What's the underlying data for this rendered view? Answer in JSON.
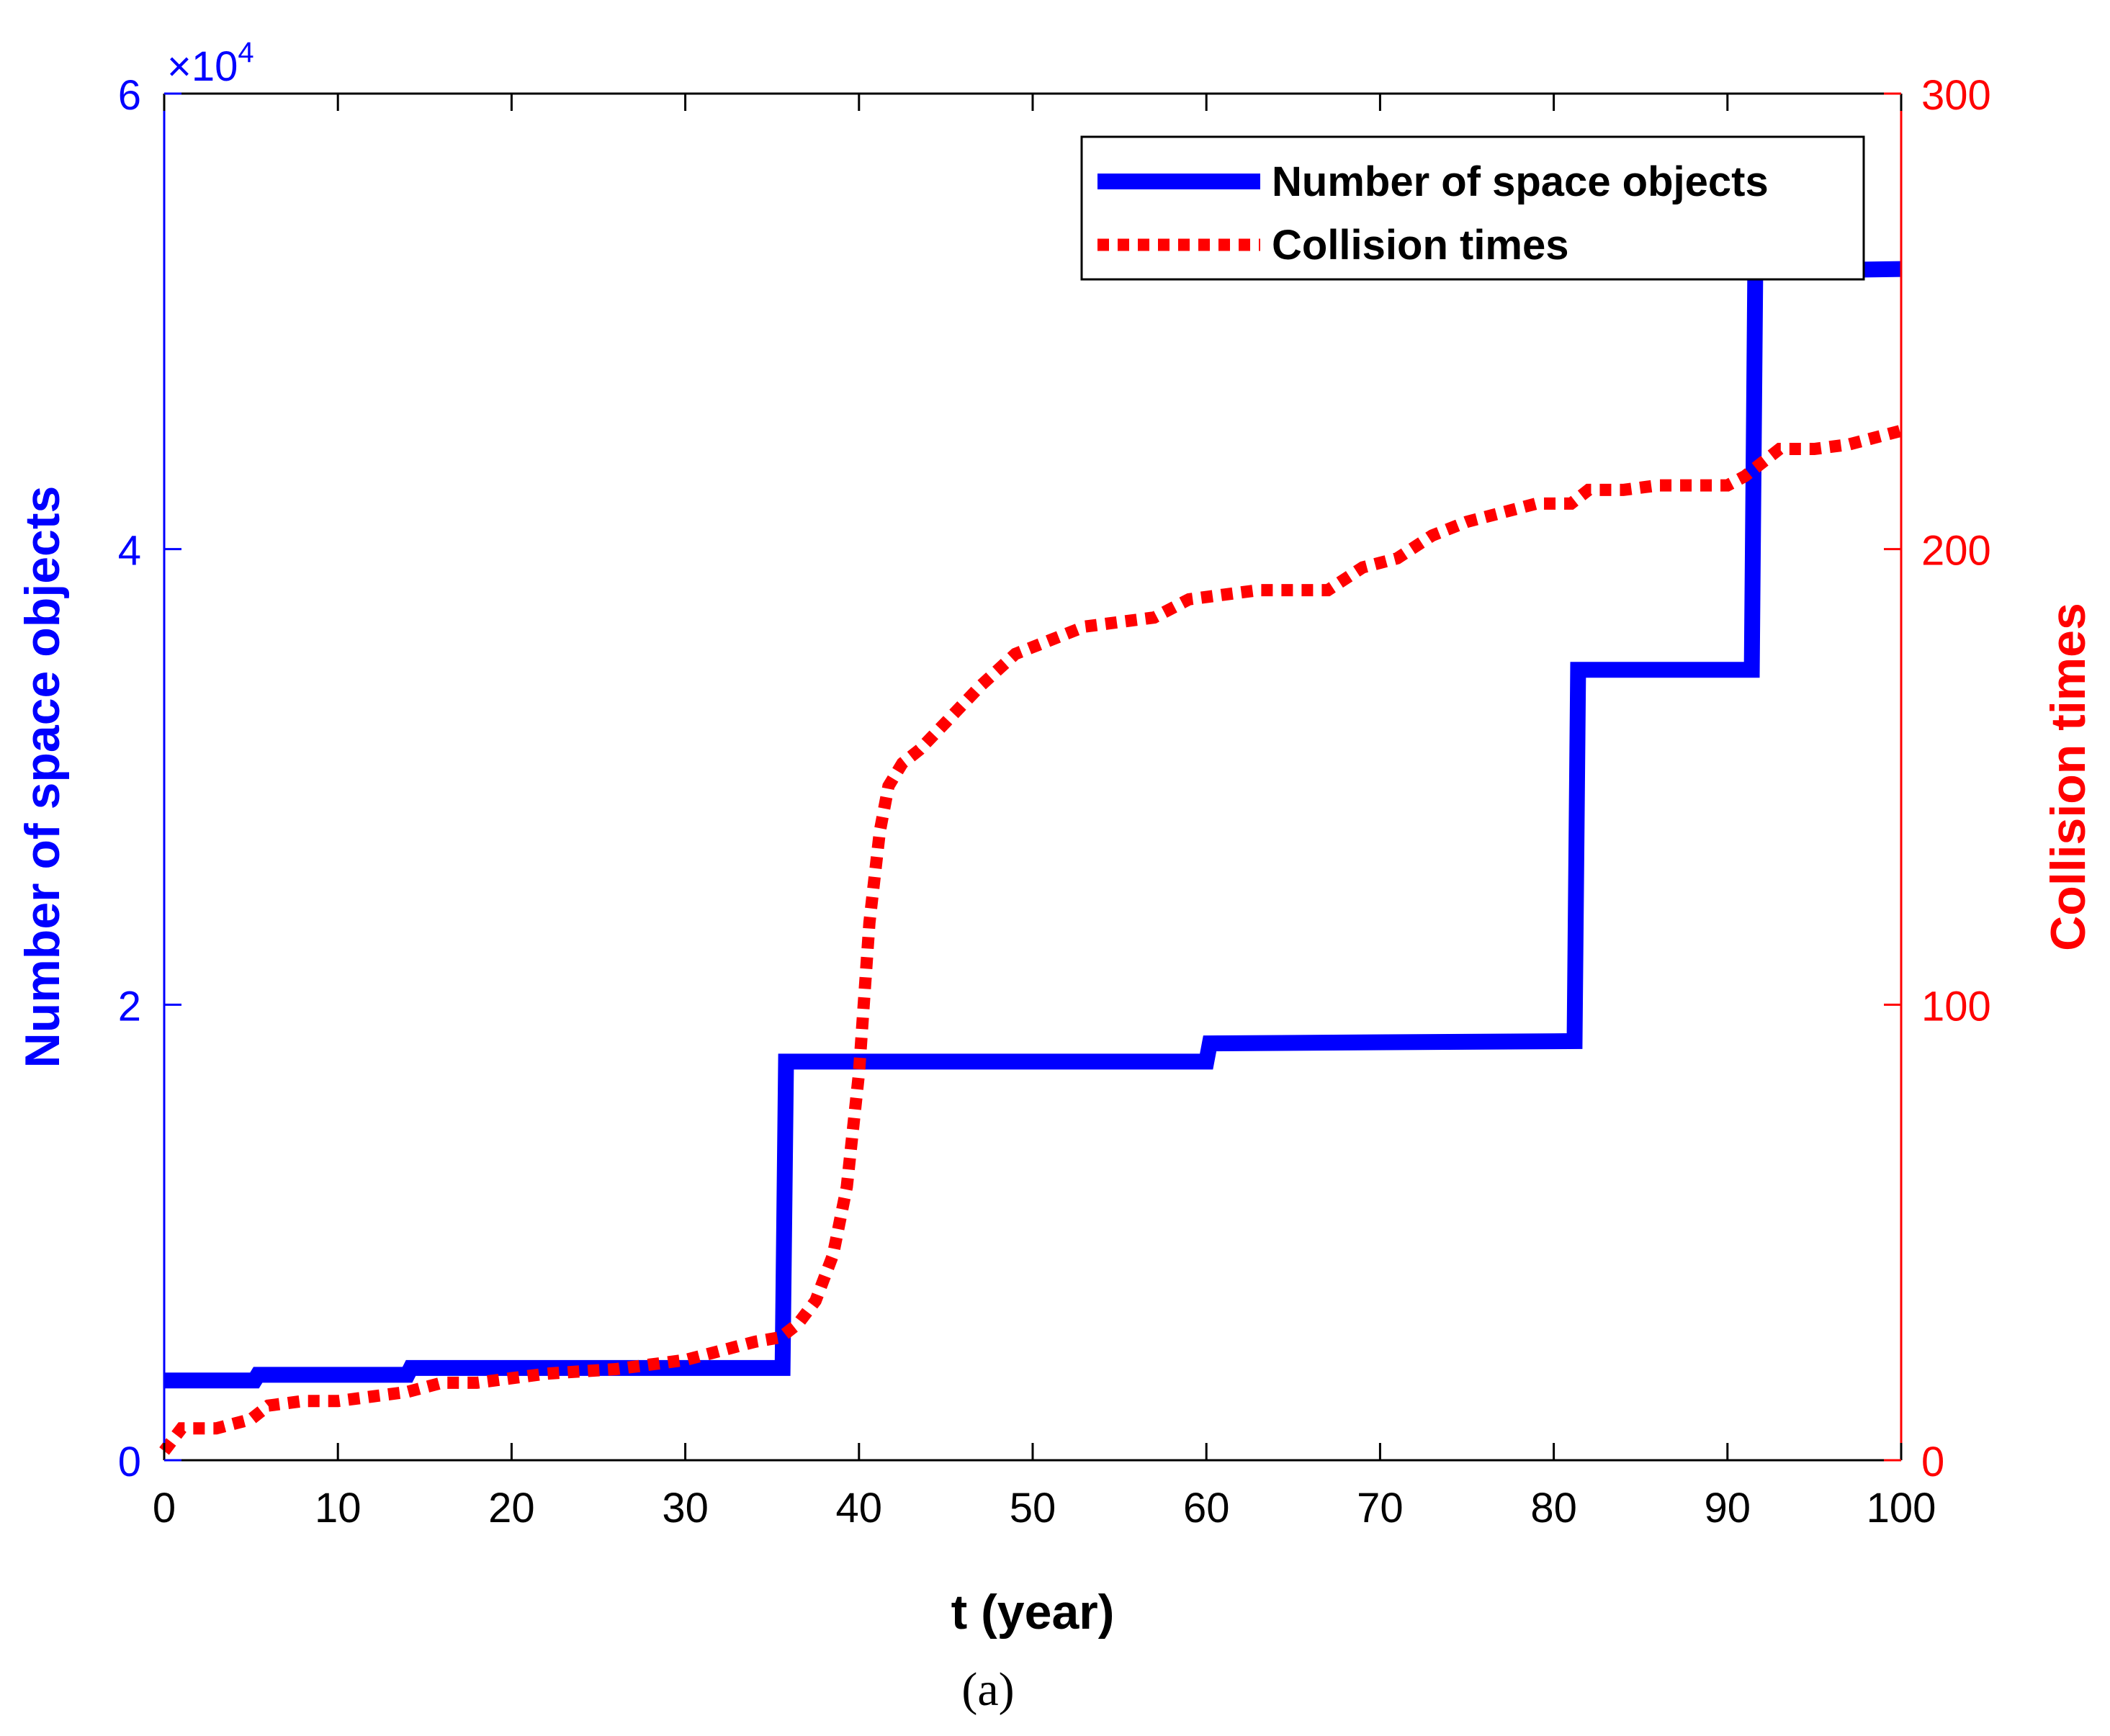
{
  "chart_data": {
    "type": "line",
    "x": {
      "label": "t (year)",
      "lim": [
        0,
        100
      ],
      "ticks": [
        0,
        10,
        20,
        30,
        40,
        50,
        60,
        70,
        80,
        90,
        100
      ],
      "tick_labels": [
        "0",
        "10",
        "20",
        "30",
        "40",
        "50",
        "60",
        "70",
        "80",
        "90",
        "100"
      ]
    },
    "y_left": {
      "label": "Number of space objects",
      "lim": [
        0,
        6
      ],
      "ticks": [
        0,
        2,
        4,
        6
      ],
      "tick_labels": [
        "0",
        "2",
        "4",
        "6"
      ],
      "multiplier_base": "×10",
      "multiplier_exp": "4",
      "color": "#0000ff"
    },
    "y_right": {
      "label": "Collision times",
      "lim": [
        0,
        300
      ],
      "ticks": [
        0,
        100,
        200,
        300
      ],
      "tick_labels": [
        "0",
        "100",
        "200",
        "300"
      ],
      "color": "#ff0000"
    },
    "legend": {
      "position": "top-right",
      "entries": [
        "Number of space objects",
        "Collision times"
      ]
    },
    "series": [
      {
        "name": "Number of space objects",
        "axis": "left",
        "style": "solid",
        "color": "#0000ff",
        "x": [
          0,
          5.2,
          5.4,
          14.0,
          14.2,
          35.6,
          35.8,
          60.0,
          60.2,
          81.2,
          81.4,
          91.4,
          91.6,
          100
        ],
        "y": [
          0.35,
          0.35,
          0.375,
          0.375,
          0.405,
          0.405,
          1.75,
          1.75,
          1.83,
          1.84,
          3.47,
          3.47,
          5.22,
          5.23
        ]
      },
      {
        "name": "Collision times",
        "axis": "right",
        "style": "dotted",
        "color": "#ff0000",
        "x": [
          0,
          1,
          3,
          5,
          6,
          8,
          10,
          12,
          14,
          16,
          18,
          20,
          22,
          24,
          26,
          28,
          30,
          32,
          34,
          35.5,
          36.5,
          37.5,
          38.5,
          39.3,
          40,
          40.6,
          41.2,
          41.7,
          42.5,
          43.5,
          45,
          47,
          49,
          51,
          53,
          55,
          57,
          59,
          61,
          63,
          65,
          67,
          69,
          71,
          73,
          75,
          77,
          79,
          81,
          82,
          84,
          86,
          88,
          90,
          91,
          92,
          93,
          95,
          97,
          99,
          100
        ],
        "y": [
          2,
          7,
          7,
          9,
          12,
          13,
          13,
          14,
          15,
          17,
          17,
          18,
          19,
          19.5,
          20,
          21,
          22,
          24,
          26,
          27,
          30,
          35,
          45,
          60,
          85,
          118,
          138,
          148,
          153,
          156,
          162,
          170,
          177,
          180,
          183,
          184,
          185,
          189,
          190,
          191,
          191,
          191,
          196,
          198,
          203,
          206,
          208,
          210,
          210,
          213,
          213,
          214,
          214,
          214,
          216,
          219,
          222,
          222,
          223,
          225,
          226
        ]
      }
    ],
    "caption": "(a)"
  }
}
